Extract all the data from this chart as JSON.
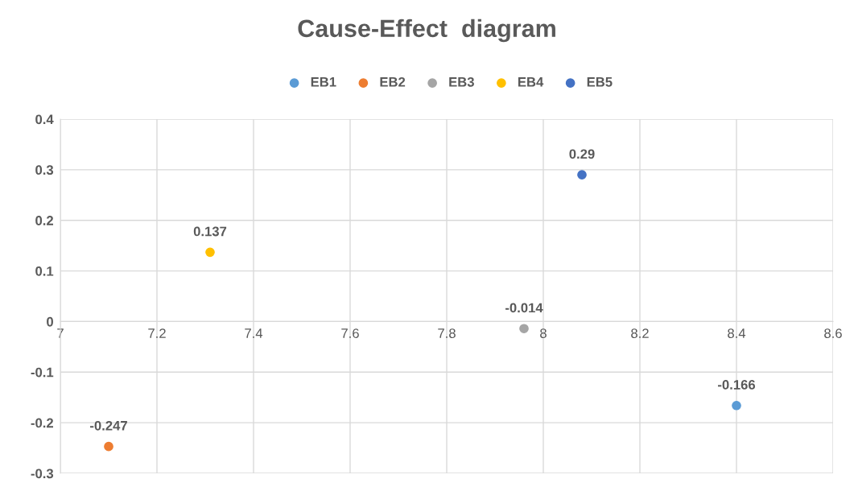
{
  "chart_data": {
    "type": "scatter",
    "title": "Cause-Effect  diagram",
    "series": [
      {
        "name": "EB1",
        "color": "#5b9bd5",
        "x": [
          8.4
        ],
        "values": [
          -0.166
        ]
      },
      {
        "name": "EB2",
        "color": "#ed7d31",
        "x": [
          7.1
        ],
        "values": [
          -0.247
        ]
      },
      {
        "name": "EB3",
        "color": "#a5a5a5",
        "x": [
          7.96
        ],
        "values": [
          -0.014
        ]
      },
      {
        "name": "EB4",
        "color": "#ffc000",
        "x": [
          7.31
        ],
        "values": [
          0.137
        ]
      },
      {
        "name": "EB5",
        "color": "#4472c4",
        "x": [
          8.08
        ],
        "values": [
          0.29
        ]
      }
    ],
    "xlim": [
      7,
      8.6
    ],
    "xticks": [
      7,
      7.2,
      7.4,
      7.6,
      7.8,
      8,
      8.2,
      8.4,
      8.6
    ],
    "ylim": [
      -0.3,
      0.4
    ],
    "yticks": [
      -0.3,
      -0.2,
      -0.1,
      0,
      0.1,
      0.2,
      0.3,
      0.4
    ],
    "grid": true,
    "legend": "top",
    "marker": "circle",
    "data_labels": true
  }
}
